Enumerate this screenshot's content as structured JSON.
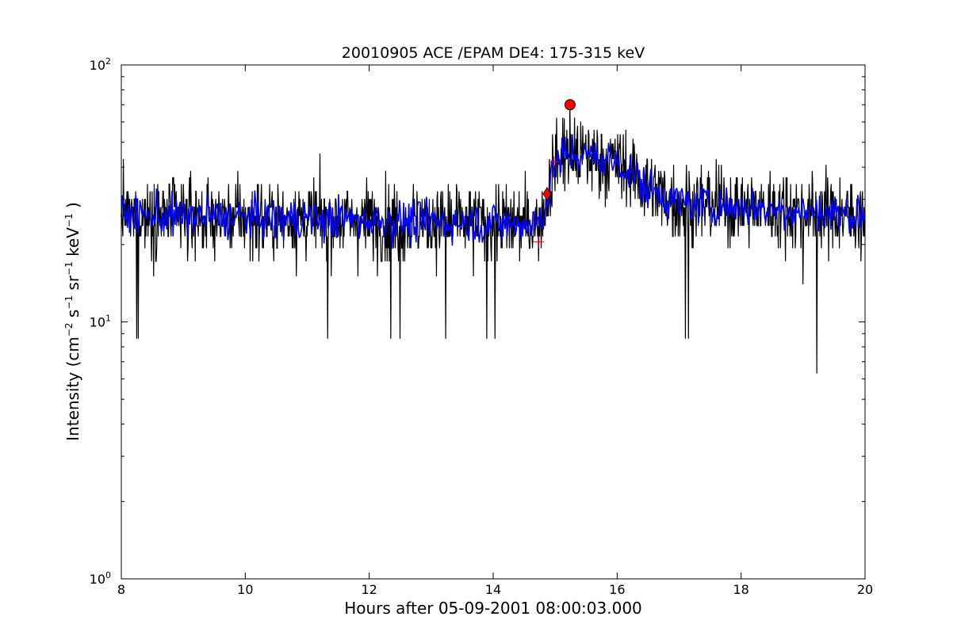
{
  "chart_data": {
    "type": "line",
    "title": "20010905 ACE /EPAM DE4: 175-315 keV",
    "xlabel": "Hours after 05-09-2001 08:00:03.000",
    "ylabel": {
      "prefix": "Intensity (cm",
      "exp1": "−2",
      "s": " s",
      "exp2": "−1",
      "sr": " sr",
      "exp3": "−1",
      "kev": " keV",
      "exp4": "−1",
      "suffix": " )"
    },
    "xlim": [
      8,
      20
    ],
    "ylim": [
      1,
      100
    ],
    "yscale": "log",
    "grid": false,
    "xticks": [
      "8",
      "10",
      "12",
      "14",
      "16",
      "18",
      "20"
    ],
    "yticks": [
      {
        "base": "10",
        "exp": "0"
      },
      {
        "base": "10",
        "exp": "1"
      },
      {
        "base": "10",
        "exp": "2"
      }
    ],
    "series": [
      {
        "color": "#000000",
        "style": "noisy raw intensity",
        "profile": [
          {
            "x": 8.0,
            "y": 26
          },
          {
            "x": 14.7,
            "y": 24
          },
          {
            "x": 14.85,
            "y": 28
          },
          {
            "x": 15.0,
            "y": 42
          },
          {
            "x": 15.3,
            "y": 45
          },
          {
            "x": 16.0,
            "y": 42
          },
          {
            "x": 16.5,
            "y": 33
          },
          {
            "x": 17.0,
            "y": 29
          },
          {
            "x": 20.0,
            "y": 26
          }
        ],
        "min": 6.3,
        "max": 70
      },
      {
        "color": "#0000ff",
        "style": "smoothed intensity",
        "profile": [
          {
            "x": 8.0,
            "y": 26
          },
          {
            "x": 14.7,
            "y": 24
          },
          {
            "x": 14.85,
            "y": 28
          },
          {
            "x": 15.0,
            "y": 42
          },
          {
            "x": 15.3,
            "y": 45
          },
          {
            "x": 16.0,
            "y": 42
          },
          {
            "x": 16.5,
            "y": 33
          },
          {
            "x": 17.0,
            "y": 29
          },
          {
            "x": 20.0,
            "y": 26
          }
        ]
      }
    ],
    "markers": [
      {
        "x": 14.87,
        "y": 31.5,
        "shape": "diamond",
        "color": "#ff0000"
      },
      {
        "x": 15.24,
        "y": 70,
        "shape": "circle",
        "color": "#ff0000"
      },
      {
        "x": 14.73,
        "y": 20.5,
        "shape": "plus",
        "color": "#ff0000"
      },
      {
        "x": 14.98,
        "y": 42,
        "shape": "plus",
        "color": "#ff0000"
      }
    ]
  }
}
